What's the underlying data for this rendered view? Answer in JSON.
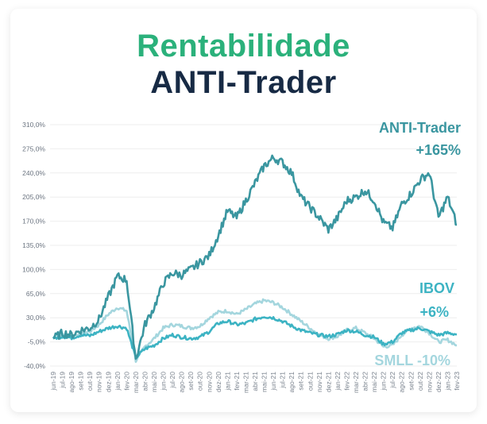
{
  "header": {
    "title_line1": "Rentabilidade",
    "title_line2": "ANTI-Trader"
  },
  "annotations": {
    "anti_name": "ANTI-Trader",
    "anti_value": "+165%",
    "ibov_name": "IBOV",
    "ibov_value": "+6%",
    "smll_label": "SMLL -10%"
  },
  "colors": {
    "title_green": "#2bb17b",
    "title_navy": "#172a44",
    "anti_trader": "#3a96a0",
    "ibov": "#3cb3c3",
    "smll": "#a4d6de",
    "grid": "#eeeeee"
  },
  "chart_data": {
    "type": "line",
    "title": "Rentabilidade ANTI-Trader",
    "xlabel": "",
    "ylabel": "",
    "ylim": [
      -40,
      310
    ],
    "yticks": [
      310,
      275,
      240,
      205,
      170,
      135,
      100,
      65,
      30,
      -5,
      -40
    ],
    "ytick_labels": [
      "310,0%",
      "275,0%",
      "240,0%",
      "205,0%",
      "170,0%",
      "135,0%",
      "100,0%",
      "65,0%",
      "30,0%",
      "-5,0%",
      "-40,0%"
    ],
    "grid": true,
    "legend": "inline annotations at right",
    "categories": [
      "jun-19",
      "jul-19",
      "ago-19",
      "set-19",
      "out-19",
      "nov-19",
      "dez-19",
      "jan-20",
      "fev-20",
      "mar-20",
      "abr-20",
      "mai-20",
      "jun-20",
      "jul-20",
      "ago-20",
      "set-20",
      "out-20",
      "nov-20",
      "dez-20",
      "jan-21",
      "fev-21",
      "mar-21",
      "abr-21",
      "mai-21",
      "jun-21",
      "jul-21",
      "ago-21",
      "set-21",
      "out-21",
      "nov-21",
      "dez-21",
      "jan-22",
      "fev-22",
      "mar-22",
      "abr-22",
      "mai-22",
      "jun-22",
      "jul-22",
      "ago-22",
      "set-22",
      "out-22",
      "nov-22",
      "dez-22",
      "jan-23",
      "fev-23"
    ],
    "series": [
      {
        "name": "ANTI-Trader",
        "final_label": "+165%",
        "values": [
          0,
          8,
          5,
          12,
          15,
          28,
          60,
          90,
          85,
          -30,
          20,
          45,
          80,
          95,
          92,
          100,
          110,
          120,
          150,
          185,
          175,
          200,
          225,
          250,
          262,
          255,
          240,
          205,
          190,
          175,
          158,
          175,
          200,
          205,
          215,
          200,
          168,
          160,
          195,
          210,
          230,
          240,
          175,
          205,
          165
        ]
      },
      {
        "name": "IBOV",
        "final_label": "+6%",
        "values": [
          0,
          3,
          1,
          5,
          4,
          10,
          15,
          18,
          15,
          -28,
          -15,
          -10,
          0,
          5,
          2,
          0,
          2,
          10,
          22,
          25,
          20,
          22,
          28,
          32,
          30,
          25,
          18,
          12,
          8,
          5,
          3,
          6,
          12,
          10,
          5,
          2,
          -8,
          -5,
          8,
          12,
          15,
          10,
          5,
          8,
          6
        ]
      },
      {
        "name": "SMLL",
        "final_label": "-10%",
        "values": [
          0,
          5,
          3,
          8,
          10,
          20,
          35,
          45,
          40,
          -32,
          -12,
          0,
          15,
          20,
          18,
          15,
          18,
          30,
          38,
          40,
          35,
          42,
          50,
          55,
          52,
          45,
          35,
          25,
          15,
          5,
          0,
          3,
          12,
          15,
          8,
          0,
          -12,
          -10,
          5,
          15,
          18,
          8,
          -5,
          -2,
          -10
        ]
      }
    ]
  }
}
